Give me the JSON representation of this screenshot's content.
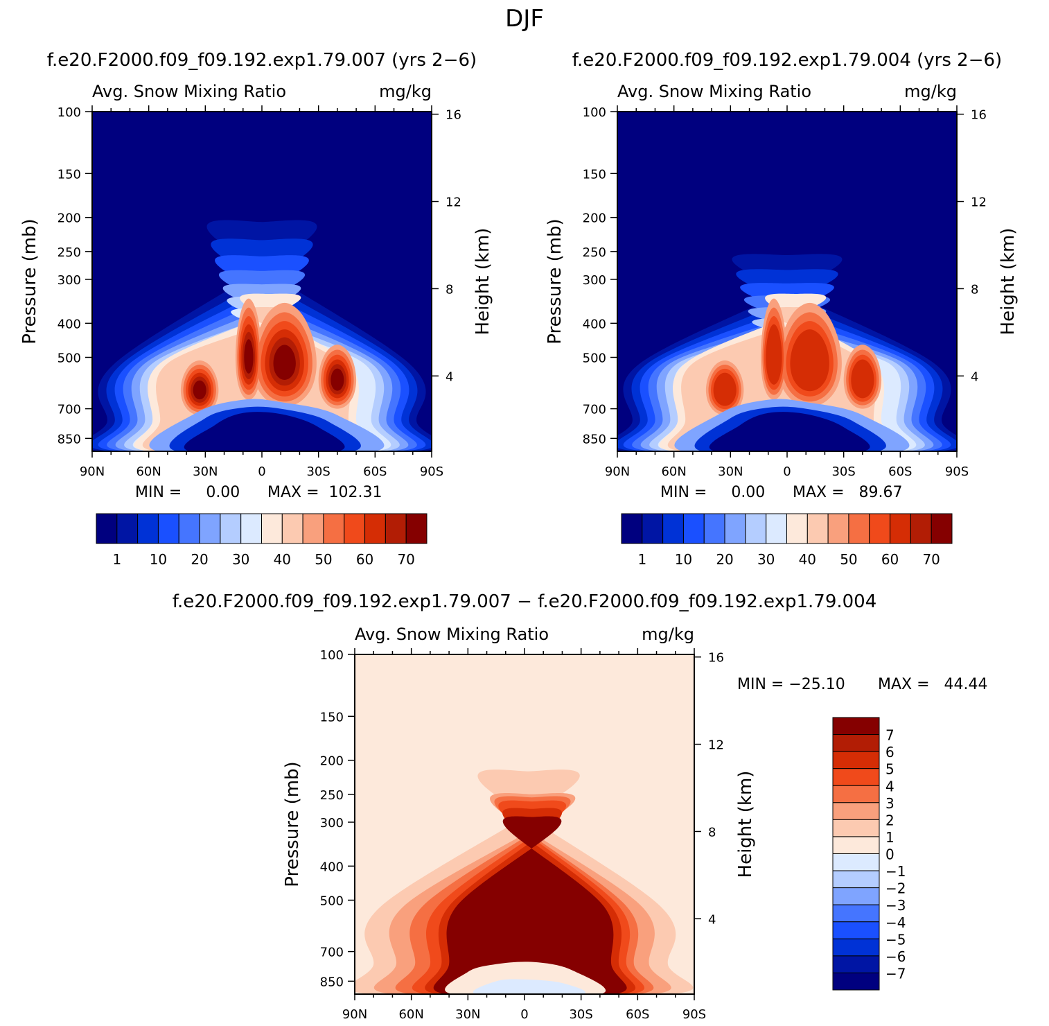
{
  "figure_title": "DJF",
  "colors": {
    "levels": [
      "#00007f",
      "#0015a4",
      "#0032d6",
      "#1a50ff",
      "#4575ff",
      "#7fa4ff",
      "#b4cdff",
      "#dceaff",
      "#fde9db",
      "#fccab1",
      "#f9a07d",
      "#f56f43",
      "#f04a1b",
      "#d52d05",
      "#b21d05",
      "#850000"
    ],
    "abs_colorbar": [
      "#00007f",
      "#0015a4",
      "#0032d6",
      "#1a50ff",
      "#4575ff",
      "#7fa4ff",
      "#b4cdff",
      "#dceaff",
      "#fde9db",
      "#fccab1",
      "#f9a07d",
      "#f56f43",
      "#f04a1b",
      "#d52d05",
      "#b21d05",
      "#850000"
    ],
    "diff_colorbar": [
      "#850000",
      "#b21d05",
      "#d52d05",
      "#f04a1b",
      "#f56f43",
      "#f9a07d",
      "#fccab1",
      "#fde9db",
      "#dceaff",
      "#b4cdff",
      "#7fa4ff",
      "#4575ff",
      "#1a50ff",
      "#0032d6",
      "#0015a4",
      "#00007f"
    ]
  },
  "panels": [
    {
      "id": "case1",
      "title": "f.e20.F2000.f09_f09.192.exp1.79.007 (yrs 2−6)",
      "left_label": "Avg. Snow Mixing Ratio",
      "right_label": "mg/kg",
      "ylabel": "Pressure (mb)",
      "y2label": "Height (km)",
      "min_text": "MIN =     0.00",
      "max_text": "MAX =  102.31"
    },
    {
      "id": "case2",
      "title": "f.e20.F2000.f09_f09.192.exp1.79.004 (yrs 2−6)",
      "left_label": "Avg. Snow Mixing Ratio",
      "right_label": "mg/kg",
      "ylabel": "Pressure (mb)",
      "y2label": "Height (km)",
      "min_text": "MIN =     0.00",
      "max_text": "MAX =   89.67"
    },
    {
      "id": "diff",
      "title": "f.e20.F2000.f09_f09.192.exp1.79.007 − f.e20.F2000.f09_f09.192.exp1.79.004",
      "left_label": "Avg. Snow Mixing Ratio",
      "right_label": "mg/kg",
      "ylabel": "Pressure (mb)",
      "y2label": "Height (km)",
      "min_text": "MIN = −25.10",
      "max_text": "MAX =   44.44"
    }
  ],
  "chart_data": [
    {
      "type": "heatmap",
      "panel": "case1",
      "title": "f.e20.F2000.f09_f09.192.exp1.79.007 (yrs 2−6)",
      "variable": "Avg. Snow Mixing Ratio",
      "units": "mg/kg",
      "x_ticks": [
        "90N",
        "60N",
        "30N",
        "0",
        "30S",
        "60S",
        "90S"
      ],
      "x_range": [
        90,
        -90
      ],
      "y_ticks": [
        100,
        150,
        200,
        250,
        300,
        400,
        500,
        700,
        850
      ],
      "ylim": [
        100,
        925
      ],
      "y2_ticks": [
        16,
        12,
        8,
        4
      ],
      "contour_levels": [
        1,
        5,
        10,
        15,
        20,
        25,
        30,
        35,
        40,
        45,
        50,
        55,
        60,
        65,
        70
      ],
      "colorbar_labels": [
        "1",
        "10",
        "20",
        "30",
        "40",
        "50",
        "60",
        "70"
      ],
      "min": 0.0,
      "max": 102.31
    },
    {
      "type": "heatmap",
      "panel": "case2",
      "title": "f.e20.F2000.f09_f09.192.exp1.79.004 (yrs 2−6)",
      "variable": "Avg. Snow Mixing Ratio",
      "units": "mg/kg",
      "x_ticks": [
        "90N",
        "60N",
        "30N",
        "0",
        "30S",
        "60S",
        "90S"
      ],
      "x_range": [
        90,
        -90
      ],
      "y_ticks": [
        100,
        150,
        200,
        250,
        300,
        400,
        500,
        700,
        850
      ],
      "ylim": [
        100,
        925
      ],
      "y2_ticks": [
        16,
        12,
        8,
        4
      ],
      "contour_levels": [
        1,
        5,
        10,
        15,
        20,
        25,
        30,
        35,
        40,
        45,
        50,
        55,
        60,
        65,
        70
      ],
      "colorbar_labels": [
        "1",
        "10",
        "20",
        "30",
        "40",
        "50",
        "60",
        "70"
      ],
      "min": 0.0,
      "max": 89.67
    },
    {
      "type": "heatmap",
      "panel": "diff",
      "title": "f.e20.F2000.f09_f09.192.exp1.79.007 − f.e20.F2000.f09_f09.192.exp1.79.004",
      "variable": "Avg. Snow Mixing Ratio",
      "units": "mg/kg",
      "x_ticks": [
        "90N",
        "60N",
        "30N",
        "0",
        "30S",
        "60S",
        "90S"
      ],
      "x_range": [
        90,
        -90
      ],
      "y_ticks": [
        100,
        150,
        200,
        250,
        300,
        400,
        500,
        700,
        850
      ],
      "ylim": [
        100,
        925
      ],
      "y2_ticks": [
        16,
        12,
        8,
        4
      ],
      "contour_levels": [
        -7,
        -6,
        -5,
        -4,
        -3,
        -2,
        -1,
        0,
        1,
        2,
        3,
        4,
        5,
        6,
        7
      ],
      "colorbar_labels": [
        "7",
        "6",
        "5",
        "4",
        "3",
        "2",
        "1",
        "0",
        "−1",
        "−2",
        "−3",
        "−4",
        "−5",
        "−6",
        "−7"
      ],
      "min": -25.1,
      "max": 44.44
    }
  ]
}
